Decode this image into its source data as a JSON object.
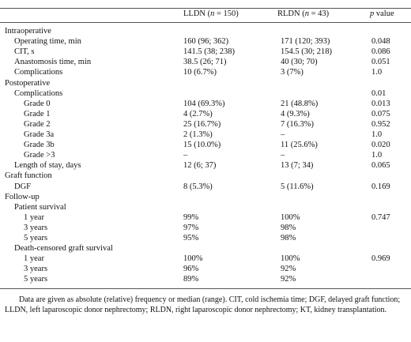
{
  "header": {
    "col1_prefix": "LLDN (",
    "col1_n": "n",
    "col1_suffix": " = 150)",
    "col2_prefix": "RLDN (",
    "col2_n": "n",
    "col2_suffix": " = 43)",
    "col3_p": "p",
    "col3_suffix": " value"
  },
  "rows": [
    {
      "label": "Intraoperative",
      "v1": "",
      "v2": "",
      "p": ""
    },
    {
      "label": "Operating time, min",
      "v1": "160 (96; 362)",
      "v2": "171 (120; 393)",
      "p": "0.048"
    },
    {
      "label": "CIT, s",
      "v1": "141.5 (38; 238)",
      "v2": "154.5 (30; 218)",
      "p": "0.086"
    },
    {
      "label": "Anastomosis time, min",
      "v1": "38.5 (26; 71)",
      "v2": "40 (30; 70)",
      "p": "0.051"
    },
    {
      "label": "Complications",
      "v1": "10 (6.7%)",
      "v2": "3 (7%)",
      "p": "1.0"
    },
    {
      "label": "Postoperative",
      "v1": "",
      "v2": "",
      "p": ""
    },
    {
      "label": "Complications",
      "v1": "",
      "v2": "",
      "p": "0.01"
    },
    {
      "label": "Grade 0",
      "v1": "104 (69.3%)",
      "v2": "21 (48.8%)",
      "p": "0.013"
    },
    {
      "label": "Grade 1",
      "v1": "4 (2.7%)",
      "v2": "4 (9.3%)",
      "p": "0.075"
    },
    {
      "label": "Grade 2",
      "v1": "25 (16.7%)",
      "v2": "7 (16.3%)",
      "p": "0.952"
    },
    {
      "label": "Grade 3a",
      "v1": "2 (1.3%)",
      "v2": "–",
      "p": "1.0"
    },
    {
      "label": "Grade 3b",
      "v1": "15 (10.0%)",
      "v2": "11 (25.6%)",
      "p": "0.020"
    },
    {
      "label": "Grade >3",
      "v1": "–",
      "v2": "–",
      "p": "1.0"
    },
    {
      "label": "Length of stay, days",
      "v1": "12 (6; 37)",
      "v2": "13 (7; 34)",
      "p": "0.065"
    },
    {
      "label": "Graft function",
      "v1": "",
      "v2": "",
      "p": ""
    },
    {
      "label": "DGF",
      "v1": "8 (5.3%)",
      "v2": "5 (11.6%)",
      "p": "0.169"
    },
    {
      "label": "Follow-up",
      "v1": "",
      "v2": "",
      "p": ""
    },
    {
      "label": "Patient survival",
      "v1": "",
      "v2": "",
      "p": ""
    },
    {
      "label": "1 year",
      "v1": "99%",
      "v2": "100%",
      "p": "0.747"
    },
    {
      "label": "3 years",
      "v1": "97%",
      "v2": "98%",
      "p": ""
    },
    {
      "label": "5 years",
      "v1": "95%",
      "v2": "98%",
      "p": ""
    },
    {
      "label": "Death-censored graft survival",
      "v1": "",
      "v2": "",
      "p": ""
    },
    {
      "label": "1 year",
      "v1": "100%",
      "v2": "100%",
      "p": "0.969"
    },
    {
      "label": "3 years",
      "v1": "96%",
      "v2": "92%",
      "p": ""
    },
    {
      "label": "5 years",
      "v1": "89%",
      "v2": "92%",
      "p": ""
    }
  ],
  "footnote": "Data are given as absolute (relative) frequency or median (range). CIT, cold ischemia time; DGF, delayed graft function; LLDN, left laparoscopic donor nephrectomy; RLDN, right laparoscopic donor nephrectomy; KT, kidney transplantation."
}
